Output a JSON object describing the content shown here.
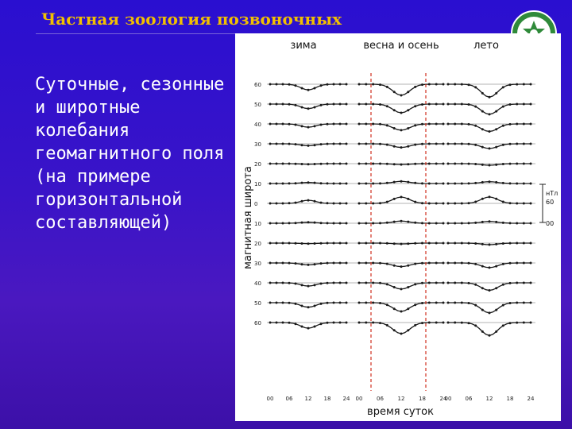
{
  "slide": {
    "title": "Частная зоология позвоночных",
    "body_lines": [
      "Суточные, сезонные",
      "и широтные",
      "колебания",
      "геомагнитного поля",
      "(на примере",
      "горизонтальной",
      "составляющей)"
    ]
  },
  "figure": {
    "season_labels": [
      "зима",
      "весна и осень",
      "лето"
    ],
    "y_axis_label": "магнитная широта",
    "x_axis_label": "время суток",
    "latitude_ticks": [
      "60",
      "50",
      "40",
      "30",
      "20",
      "10",
      "0",
      "10",
      "20",
      "30",
      "40",
      "50",
      "60"
    ],
    "hour_ticks": [
      "00",
      "06",
      "12",
      "18",
      "24"
    ],
    "scale_unit": "нТл",
    "scale_values": [
      "60",
      "00"
    ]
  },
  "colors": {
    "background": "#3412c6",
    "title": "#f2c000",
    "dashed_guides": "#d03020"
  },
  "icons": {
    "logo": "university-emblem"
  }
}
